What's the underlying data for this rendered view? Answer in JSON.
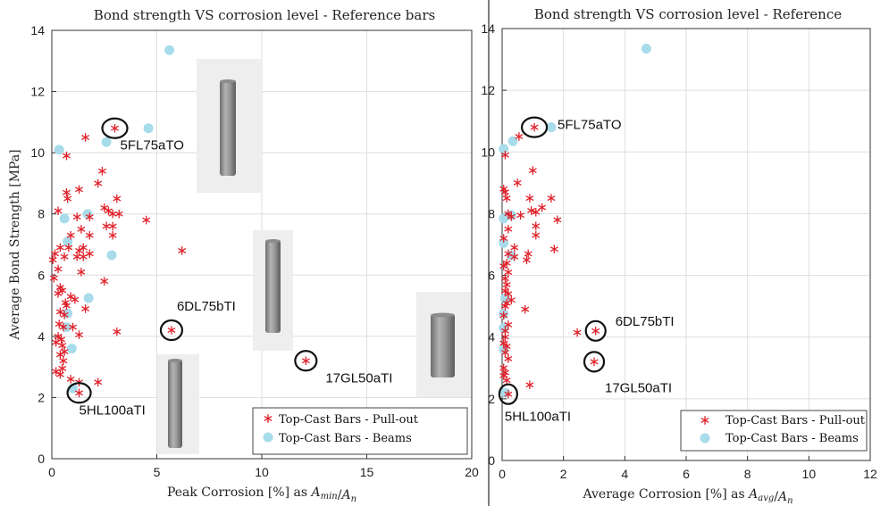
{
  "chart_data": [
    {
      "type": "scatter",
      "title": "Bond strength VS corrosion level - Reference bars",
      "xlabel": "Peak Corrosion [%] as A_min/A_n",
      "xlabel_parts": {
        "prefix": "Peak Corrosion [%] as ",
        "num": "A",
        "num_sub": "min",
        "den": "A",
        "den_sub": "n"
      },
      "ylabel": "Average Bond Strength [MPa]",
      "xlim": [
        0,
        20
      ],
      "ylim": [
        0,
        14
      ],
      "xticks": [
        "0",
        "5",
        "10",
        "15",
        "20"
      ],
      "yticks": [
        "0",
        "2",
        "4",
        "6",
        "8",
        "10",
        "12",
        "14"
      ],
      "grid": true,
      "legend_position": "bottom-right",
      "series": [
        {
          "name": "Top-Cast Bars - Pull-out",
          "color": "#e0202a",
          "marker": "asterisk",
          "points": [
            [
              3.0,
              10.8
            ],
            [
              1.6,
              10.5
            ],
            [
              0.7,
              9.9
            ],
            [
              2.4,
              9.4
            ],
            [
              2.2,
              9.0
            ],
            [
              1.3,
              8.8
            ],
            [
              0.7,
              8.7
            ],
            [
              0.75,
              8.5
            ],
            [
              0.3,
              8.1
            ],
            [
              2.5,
              8.2
            ],
            [
              2.7,
              8.1
            ],
            [
              2.9,
              8.0
            ],
            [
              3.1,
              8.5
            ],
            [
              3.2,
              8.0
            ],
            [
              1.8,
              7.9
            ],
            [
              1.2,
              7.9
            ],
            [
              4.5,
              7.8
            ],
            [
              2.6,
              7.6
            ],
            [
              2.9,
              7.6
            ],
            [
              1.4,
              7.5
            ],
            [
              2.9,
              7.3
            ],
            [
              1.8,
              7.3
            ],
            [
              0.9,
              7.3
            ],
            [
              0.4,
              6.9
            ],
            [
              0.8,
              6.9
            ],
            [
              1.5,
              6.9
            ],
            [
              1.3,
              6.8
            ],
            [
              1.8,
              6.7
            ],
            [
              0.15,
              6.7
            ],
            [
              0.05,
              6.5
            ],
            [
              0.6,
              6.6
            ],
            [
              1.5,
              6.6
            ],
            [
              1.2,
              6.6
            ],
            [
              0.3,
              6.2
            ],
            [
              6.2,
              6.8
            ],
            [
              1.4,
              6.1
            ],
            [
              0.1,
              5.9
            ],
            [
              2.5,
              5.8
            ],
            [
              0.4,
              5.6
            ],
            [
              0.3,
              5.4
            ],
            [
              0.5,
              5.5
            ],
            [
              0.9,
              5.3
            ],
            [
              1.1,
              5.2
            ],
            [
              0.65,
              5.1
            ],
            [
              0.7,
              5.0
            ],
            [
              1.6,
              4.9
            ],
            [
              0.4,
              4.8
            ],
            [
              0.6,
              4.7
            ],
            [
              0.35,
              4.4
            ],
            [
              0.55,
              4.3
            ],
            [
              1.0,
              4.3
            ],
            [
              3.1,
              4.15
            ],
            [
              1.3,
              4.05
            ],
            [
              5.7,
              4.2
            ],
            [
              0.3,
              4.0
            ],
            [
              0.45,
              3.9
            ],
            [
              0.2,
              3.8
            ],
            [
              0.5,
              3.7
            ],
            [
              0.6,
              3.5
            ],
            [
              0.4,
              3.4
            ],
            [
              0.55,
              3.2
            ],
            [
              12.1,
              3.2
            ],
            [
              0.2,
              2.85
            ],
            [
              0.4,
              2.75
            ],
            [
              0.5,
              2.95
            ],
            [
              0.9,
              2.6
            ],
            [
              1.3,
              2.5
            ],
            [
              2.2,
              2.5
            ],
            [
              1.3,
              2.15
            ]
          ]
        },
        {
          "name": "Top-Cast Bars - Beams",
          "color": "#a8dcea",
          "marker": "circle",
          "points": [
            [
              5.6,
              13.35
            ],
            [
              4.6,
              10.8
            ],
            [
              2.6,
              10.35
            ],
            [
              0.35,
              10.1
            ],
            [
              1.7,
              8.0
            ],
            [
              0.6,
              7.85
            ],
            [
              0.75,
              7.1
            ],
            [
              2.85,
              6.65
            ],
            [
              1.75,
              5.25
            ],
            [
              0.75,
              4.75
            ],
            [
              0.7,
              4.3
            ],
            [
              0.95,
              3.6
            ],
            [
              1.0,
              2.3
            ]
          ]
        }
      ],
      "annotations": [
        {
          "text": "5FL75aTO",
          "x": 3.0,
          "y": 10.8
        },
        {
          "text": "6DL75bTI",
          "x": 5.7,
          "y": 4.2
        },
        {
          "text": "17GL50aTI",
          "x": 12.1,
          "y": 3.2
        },
        {
          "text": "5HL100aTI",
          "x": 1.3,
          "y": 2.15
        }
      ]
    },
    {
      "type": "scatter",
      "title": "Bond strength VS corrosion level - Reference",
      "xlabel": "Average Corrosion [%] as A_avg/A_n",
      "xlabel_parts": {
        "prefix": "Average Corrosion [%] as ",
        "num": "A",
        "num_sub": "avg",
        "den": "A",
        "den_sub": "n"
      },
      "ylabel": "",
      "xlim": [
        0,
        12
      ],
      "ylim": [
        0,
        14
      ],
      "xticks": [
        "0",
        "2",
        "4",
        "6",
        "8",
        "10",
        "12"
      ],
      "yticks": [
        "0",
        "2",
        "4",
        "6",
        "8",
        "10",
        "12",
        "14"
      ],
      "grid": true,
      "legend_position": "bottom-right",
      "series": [
        {
          "name": "Top-Cast Bars - Pull-out",
          "color": "#e0202a",
          "marker": "asterisk",
          "points": [
            [
              1.05,
              10.8
            ],
            [
              0.55,
              10.5
            ],
            [
              0.1,
              9.9
            ],
            [
              1.0,
              9.4
            ],
            [
              0.5,
              9.0
            ],
            [
              0.05,
              8.8
            ],
            [
              0.1,
              8.7
            ],
            [
              0.15,
              8.5
            ],
            [
              1.6,
              8.5
            ],
            [
              0.9,
              8.5
            ],
            [
              1.3,
              8.2
            ],
            [
              0.95,
              8.1
            ],
            [
              1.1,
              8.05
            ],
            [
              0.6,
              7.95
            ],
            [
              0.2,
              8.0
            ],
            [
              1.8,
              7.8
            ],
            [
              0.3,
              7.9
            ],
            [
              1.1,
              7.6
            ],
            [
              0.2,
              7.5
            ],
            [
              1.1,
              7.3
            ],
            [
              0.05,
              7.2
            ],
            [
              0.4,
              6.9
            ],
            [
              1.7,
              6.85
            ],
            [
              0.85,
              6.7
            ],
            [
              0.2,
              6.7
            ],
            [
              0.4,
              6.6
            ],
            [
              0.8,
              6.5
            ],
            [
              0.15,
              6.4
            ],
            [
              0.05,
              6.3
            ],
            [
              0.2,
              6.1
            ],
            [
              0.1,
              5.9
            ],
            [
              0.15,
              5.7
            ],
            [
              0.1,
              5.5
            ],
            [
              0.2,
              5.4
            ],
            [
              0.3,
              5.2
            ],
            [
              0.15,
              5.1
            ],
            [
              0.1,
              5.0
            ],
            [
              0.75,
              4.9
            ],
            [
              0.05,
              4.7
            ],
            [
              0.2,
              4.4
            ],
            [
              0.1,
              4.2
            ],
            [
              2.45,
              4.15
            ],
            [
              3.05,
              4.2
            ],
            [
              0.1,
              4.0
            ],
            [
              0.05,
              3.8
            ],
            [
              0.15,
              3.7
            ],
            [
              0.1,
              3.5
            ],
            [
              0.2,
              3.3
            ],
            [
              3.0,
              3.2
            ],
            [
              0.05,
              3.0
            ],
            [
              0.1,
              2.85
            ],
            [
              0.05,
              2.75
            ],
            [
              0.15,
              2.6
            ],
            [
              0.9,
              2.45
            ],
            [
              0.2,
              2.15
            ]
          ]
        },
        {
          "name": "Top-Cast Bars - Beams",
          "color": "#a8dcea",
          "marker": "circle",
          "points": [
            [
              4.7,
              13.35
            ],
            [
              1.6,
              10.8
            ],
            [
              0.35,
              10.35
            ],
            [
              0.05,
              10.1
            ],
            [
              0.3,
              7.95
            ],
            [
              0.05,
              7.85
            ],
            [
              0.05,
              7.05
            ],
            [
              0.3,
              6.65
            ],
            [
              0.1,
              5.25
            ],
            [
              0.05,
              4.75
            ],
            [
              0.05,
              4.3
            ],
            [
              0.05,
              3.6
            ],
            [
              0.1,
              2.2
            ]
          ]
        }
      ],
      "annotations": [
        {
          "text": "5FL75aTO",
          "x": 1.05,
          "y": 10.8
        },
        {
          "text": "6DL75bTI",
          "x": 3.05,
          "y": 4.2
        },
        {
          "text": "17GL50aTI",
          "x": 3.0,
          "y": 3.2
        },
        {
          "text": "5HL100aTI",
          "x": 0.2,
          "y": 2.15
        }
      ]
    }
  ]
}
